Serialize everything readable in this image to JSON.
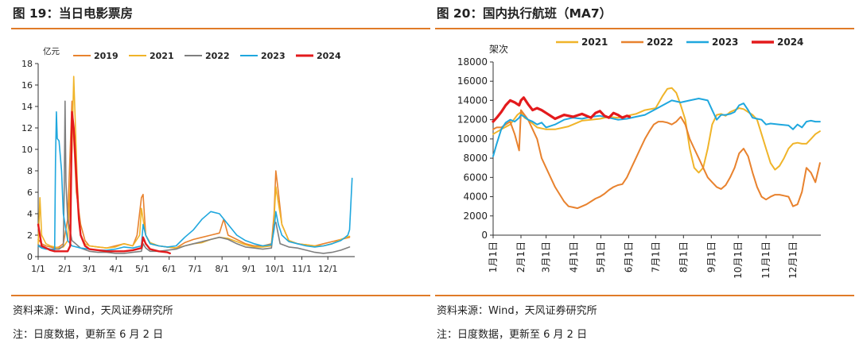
{
  "left": {
    "title": "图 19：当日电影票房",
    "source": "资料来源：Wind，天风证券研究所",
    "note": "注：日度数据，更新至 6 月 2 日"
  },
  "right": {
    "title": "图 20：国内执行航班（MA7）",
    "source": "资料来源：Wind，天风证券研究所",
    "note": "注：日度数据，更新至 6 月 2 日"
  },
  "chart_data": [
    {
      "type": "line",
      "title": "",
      "ylabel": "亿元",
      "xlabel": "",
      "ylim": [
        0,
        18
      ],
      "yticks": [
        0,
        2,
        4,
        6,
        8,
        10,
        12,
        14,
        16,
        18
      ],
      "xticks": [
        "1/1",
        "2/1",
        "3/1",
        "4/1",
        "5/1",
        "6/1",
        "7/1",
        "8/1",
        "9/1",
        "10/1",
        "11/1",
        "12/1"
      ],
      "x_day_of_year": [
        1,
        32,
        60,
        91,
        121,
        152,
        182,
        213,
        244,
        274,
        305,
        335
      ],
      "grid": false,
      "legend": "top",
      "series": [
        {
          "name": "2019",
          "color": "#E8822E",
          "x": [
            1,
            5,
            10,
            15,
            20,
            25,
            30,
            35,
            40,
            45,
            50,
            55,
            60,
            70,
            80,
            90,
            100,
            110,
            115,
            120,
            122,
            125,
            130,
            140,
            150,
            160,
            170,
            180,
            190,
            200,
            210,
            215,
            220,
            230,
            240,
            250,
            260,
            270,
            273,
            275,
            278,
            282,
            290,
            300,
            310,
            320,
            330,
            340,
            350,
            360
          ],
          "y": [
            1.6,
            1.2,
            1.0,
            0.9,
            0.8,
            0.9,
            1.2,
            3.5,
            14.5,
            6.0,
            3.0,
            1.5,
            1.0,
            0.9,
            0.8,
            1.0,
            1.2,
            1.0,
            2.0,
            5.5,
            5.8,
            2.0,
            1.2,
            1.0,
            0.9,
            0.8,
            1.3,
            1.6,
            1.8,
            2.0,
            2.2,
            3.5,
            2.0,
            1.6,
            1.2,
            1.0,
            1.0,
            1.2,
            4.0,
            8.0,
            6.0,
            3.0,
            1.5,
            1.2,
            1.1,
            1.0,
            1.2,
            1.4,
            1.6,
            1.8
          ]
        },
        {
          "name": "2021",
          "color": "#F0B429",
          "x": [
            1,
            3,
            5,
            10,
            15,
            20,
            25,
            30,
            35,
            40,
            42,
            44,
            46,
            48,
            50,
            55,
            60,
            70,
            80,
            90,
            100,
            110,
            118,
            120,
            122,
            125,
            130,
            140,
            150,
            160,
            170,
            180,
            190,
            200,
            210,
            220,
            230,
            240,
            250,
            260,
            270,
            273,
            275,
            278,
            282,
            290,
            300,
            310,
            320,
            330,
            340,
            350,
            360
          ],
          "y": [
            1.2,
            5.5,
            2.0,
            1.2,
            1.0,
            0.9,
            0.8,
            0.9,
            1.5,
            10.0,
            16.8,
            12.0,
            7.0,
            4.0,
            2.0,
            1.2,
            1.0,
            0.9,
            0.8,
            0.9,
            1.2,
            1.0,
            2.0,
            4.5,
            3.5,
            2.0,
            1.3,
            1.0,
            0.9,
            0.8,
            1.0,
            1.2,
            1.3,
            1.6,
            1.8,
            1.7,
            1.4,
            1.1,
            0.9,
            0.9,
            1.0,
            3.5,
            6.5,
            5.0,
            3.0,
            1.5,
            1.2,
            1.1,
            1.0,
            1.0,
            1.2,
            1.6,
            1.9
          ]
        },
        {
          "name": "2022",
          "color": "#7F7F7F",
          "x": [
            1,
            5,
            10,
            15,
            20,
            25,
            30,
            31,
            32,
            33,
            35,
            40,
            50,
            60,
            70,
            80,
            90,
            100,
            110,
            120,
            122,
            125,
            130,
            140,
            150,
            160,
            170,
            180,
            190,
            200,
            210,
            220,
            230,
            240,
            250,
            260,
            270,
            273,
            275,
            280,
            290,
            300,
            310,
            320,
            330,
            340,
            350,
            360
          ],
          "y": [
            1.1,
            0.9,
            0.8,
            0.7,
            0.7,
            0.7,
            1.0,
            6.0,
            14.5,
            7.0,
            3.5,
            1.5,
            0.8,
            0.5,
            0.4,
            0.4,
            0.3,
            0.3,
            0.4,
            0.5,
            1.2,
            0.8,
            0.5,
            0.5,
            0.6,
            0.7,
            1.0,
            1.2,
            1.4,
            1.6,
            1.8,
            1.6,
            1.2,
            0.9,
            0.8,
            0.7,
            0.8,
            3.0,
            3.2,
            1.2,
            0.9,
            0.8,
            0.6,
            0.4,
            0.3,
            0.4,
            0.6,
            0.9
          ]
        },
        {
          "name": "2023",
          "color": "#1FA7DE",
          "x": [
            1,
            5,
            10,
            15,
            20,
            21,
            22,
            23,
            25,
            28,
            30,
            35,
            40,
            50,
            60,
            70,
            80,
            90,
            100,
            110,
            120,
            122,
            125,
            130,
            140,
            150,
            160,
            170,
            180,
            190,
            200,
            210,
            220,
            230,
            240,
            250,
            260,
            270,
            273,
            275,
            278,
            282,
            290,
            300,
            310,
            320,
            330,
            340,
            350,
            355,
            358,
            360,
            363
          ],
          "y": [
            1.0,
            0.8,
            0.7,
            0.7,
            0.6,
            9.0,
            13.5,
            11.0,
            10.8,
            8.0,
            4.0,
            1.5,
            1.0,
            0.8,
            0.7,
            0.6,
            0.6,
            0.7,
            0.9,
            0.8,
            1.0,
            3.0,
            2.0,
            1.2,
            1.0,
            0.9,
            1.0,
            1.8,
            2.5,
            3.5,
            4.2,
            4.0,
            3.0,
            2.0,
            1.5,
            1.2,
            1.0,
            1.1,
            2.5,
            4.2,
            3.0,
            2.0,
            1.4,
            1.2,
            1.0,
            0.9,
            1.0,
            1.2,
            1.5,
            1.8,
            2.0,
            2.5,
            7.3
          ]
        },
        {
          "name": "2024",
          "color": "#E31A1C",
          "x": [
            1,
            5,
            10,
            15,
            20,
            25,
            30,
            35,
            38,
            40,
            42,
            44,
            46,
            48,
            50,
            55,
            60,
            70,
            80,
            90,
            100,
            110,
            120,
            122,
            125,
            130,
            140,
            150,
            153
          ],
          "y": [
            3.0,
            1.0,
            0.8,
            0.6,
            0.5,
            0.5,
            0.5,
            0.5,
            1.0,
            13.5,
            12.0,
            9.0,
            6.0,
            3.5,
            2.0,
            1.0,
            0.7,
            0.6,
            0.5,
            0.5,
            0.5,
            0.6,
            0.8,
            1.8,
            1.2,
            0.7,
            0.5,
            0.4,
            0.3
          ]
        }
      ]
    },
    {
      "type": "line",
      "title": "",
      "ylabel": "架次",
      "xlabel": "",
      "ylim": [
        0,
        18000
      ],
      "yticks": [
        0,
        2000,
        4000,
        6000,
        8000,
        10000,
        12000,
        14000,
        16000,
        18000
      ],
      "xticks": [
        "1月1日",
        "2月1日",
        "3月1日",
        "4月1日",
        "5月1日",
        "6月1日",
        "7月1日",
        "8月1日",
        "9月1日",
        "10月1日",
        "11月1日",
        "12月1日"
      ],
      "x_day_of_year": [
        1,
        32,
        60,
        91,
        121,
        152,
        182,
        213,
        244,
        274,
        305,
        335
      ],
      "grid": false,
      "legend": "top",
      "series": [
        {
          "name": "2021",
          "color": "#F0B429",
          "x": [
            1,
            10,
            20,
            28,
            32,
            36,
            40,
            50,
            60,
            70,
            80,
            85,
            90,
            95,
            100,
            110,
            120,
            130,
            140,
            150,
            160,
            170,
            182,
            190,
            195,
            200,
            205,
            210,
            215,
            220,
            225,
            230,
            235,
            240,
            245,
            250,
            255,
            260,
            265,
            270,
            275,
            280,
            285,
            290,
            295,
            300,
            305,
            310,
            315,
            320,
            325,
            330,
            335,
            340,
            345,
            350,
            355,
            360,
            365
          ],
          "y": [
            10500,
            11000,
            11500,
            12500,
            12800,
            12200,
            12000,
            11200,
            11000,
            11000,
            11200,
            11300,
            11500,
            11700,
            11900,
            12000,
            12100,
            12300,
            12200,
            12400,
            12600,
            13000,
            13200,
            14500,
            15200,
            15300,
            14800,
            13500,
            12000,
            9000,
            7000,
            6500,
            7000,
            9000,
            11500,
            12500,
            12600,
            12400,
            12800,
            13000,
            13200,
            13100,
            12800,
            12500,
            12000,
            10500,
            9000,
            7500,
            6800,
            7200,
            8000,
            9000,
            9500,
            9600,
            9500,
            9500,
            10000,
            10500,
            10800
          ]
        },
        {
          "name": "2022",
          "color": "#E8822E",
          "x": [
            1,
            5,
            10,
            15,
            20,
            25,
            30,
            32,
            36,
            40,
            45,
            50,
            55,
            60,
            70,
            80,
            85,
            90,
            95,
            100,
            105,
            110,
            115,
            120,
            125,
            130,
            135,
            140,
            145,
            150,
            155,
            160,
            165,
            170,
            175,
            180,
            185,
            190,
            195,
            200,
            205,
            210,
            215,
            220,
            225,
            230,
            235,
            240,
            245,
            250,
            255,
            260,
            265,
            270,
            275,
            280,
            285,
            290,
            295,
            300,
            305,
            310,
            315,
            320,
            325,
            330,
            335,
            340,
            345,
            350,
            355,
            360,
            365
          ],
          "y": [
            11000,
            11200,
            11200,
            11500,
            11800,
            10500,
            8800,
            13000,
            12500,
            12000,
            11000,
            10000,
            8000,
            7000,
            5000,
            3500,
            3000,
            2900,
            2800,
            3000,
            3200,
            3500,
            3800,
            4000,
            4300,
            4700,
            5000,
            5200,
            5300,
            6000,
            7000,
            8000,
            9000,
            10000,
            10800,
            11500,
            11800,
            11800,
            11700,
            11500,
            11800,
            12300,
            11500,
            10000,
            9000,
            8000,
            7000,
            6000,
            5500,
            5000,
            4800,
            5200,
            6000,
            7000,
            8500,
            9000,
            8200,
            6500,
            5000,
            4000,
            3700,
            4000,
            4200,
            4200,
            4100,
            4000,
            3000,
            3200,
            4500,
            7000,
            6500,
            5500,
            7500
          ]
        },
        {
          "name": "2023",
          "color": "#1FA7DE",
          "x": [
            1,
            5,
            10,
            15,
            20,
            25,
            30,
            32,
            36,
            40,
            45,
            50,
            55,
            60,
            70,
            80,
            90,
            100,
            110,
            120,
            130,
            140,
            150,
            160,
            170,
            180,
            190,
            200,
            210,
            220,
            230,
            240,
            245,
            250,
            255,
            260,
            265,
            270,
            275,
            280,
            285,
            290,
            295,
            300,
            305,
            310,
            320,
            330,
            335,
            340,
            345,
            350,
            355,
            360,
            365
          ],
          "y": [
            8200,
            9500,
            11000,
            11700,
            12000,
            11800,
            12200,
            12500,
            12300,
            12000,
            11800,
            11500,
            11700,
            11200,
            11500,
            12000,
            12200,
            12100,
            12300,
            12400,
            12200,
            12000,
            12100,
            12300,
            12500,
            13000,
            13500,
            14000,
            13800,
            14000,
            14200,
            14000,
            13000,
            12000,
            12500,
            12500,
            12600,
            12800,
            13500,
            13700,
            13000,
            12200,
            12100,
            12000,
            11500,
            11600,
            11500,
            11400,
            11000,
            11500,
            11200,
            11800,
            11900,
            11800,
            11800
          ]
        },
        {
          "name": "2024",
          "color": "#E31A1C",
          "x": [
            1,
            5,
            10,
            15,
            20,
            25,
            30,
            32,
            35,
            40,
            45,
            50,
            55,
            60,
            70,
            80,
            90,
            100,
            110,
            115,
            120,
            125,
            130,
            135,
            140,
            145,
            150,
            153
          ],
          "y": [
            11800,
            12200,
            12800,
            13500,
            14000,
            13800,
            13500,
            14000,
            14300,
            13600,
            13000,
            13200,
            13000,
            12700,
            12100,
            12500,
            12300,
            12600,
            12200,
            12700,
            12900,
            12400,
            12200,
            12700,
            12500,
            12200,
            12400,
            12300
          ]
        }
      ]
    }
  ]
}
